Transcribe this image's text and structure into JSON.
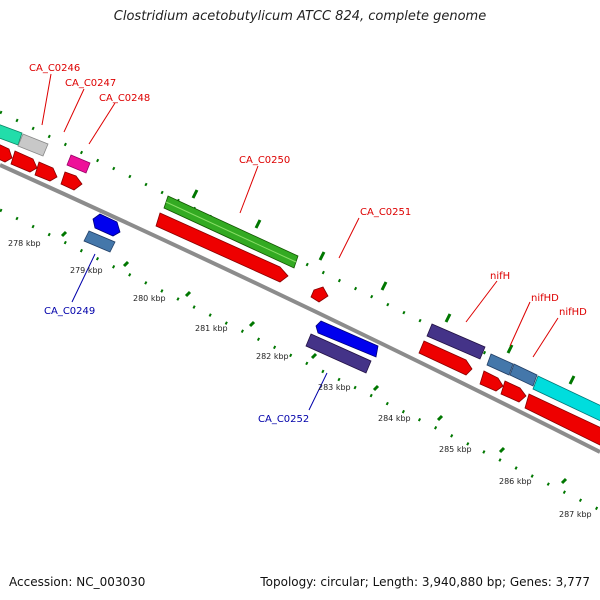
{
  "title": "Clostridium acetobutylicum ATCC 824, complete genome",
  "footer": {
    "accession": "Accession: NC_003030",
    "summary": "Topology: circular; Length: 3,940,880 bp; Genes: 3,777"
  },
  "colors": {
    "forward_label": "#dd0000",
    "reverse_label": "#0000aa",
    "backbone": "#8c8c8c",
    "tick": "#007700",
    "cds": "#ee0000",
    "green_feature": "#33aa22",
    "blue_feature": "#0000ee",
    "purple_feature": "#443388",
    "steel_feature": "#4477aa",
    "cyan_feature": "#00dddd",
    "magenta_feature": "#ee1199",
    "grey_feature": "#c8c8c8",
    "mint_feature": "#22ddaa"
  },
  "kbp_labels": [
    "278 kbp",
    "279 kbp",
    "280 kbp",
    "281 kbp",
    "282 kbp",
    "283 kbp",
    "284 kbp",
    "285 kbp",
    "286 kbp",
    "287 kbp"
  ],
  "genes": [
    {
      "label": "CA_C0246",
      "strand": "forward"
    },
    {
      "label": "CA_C0247",
      "strand": "forward"
    },
    {
      "label": "CA_C0248",
      "strand": "forward"
    },
    {
      "label": "CA_C0249",
      "strand": "reverse"
    },
    {
      "label": "CA_C0250",
      "strand": "forward"
    },
    {
      "label": "CA_C0251",
      "strand": "forward"
    },
    {
      "label": "CA_C0252",
      "strand": "reverse"
    },
    {
      "label": "nifH",
      "strand": "forward"
    },
    {
      "label": "nifHD",
      "strand": "forward"
    },
    {
      "label": "nifHD",
      "strand": "forward"
    }
  ]
}
